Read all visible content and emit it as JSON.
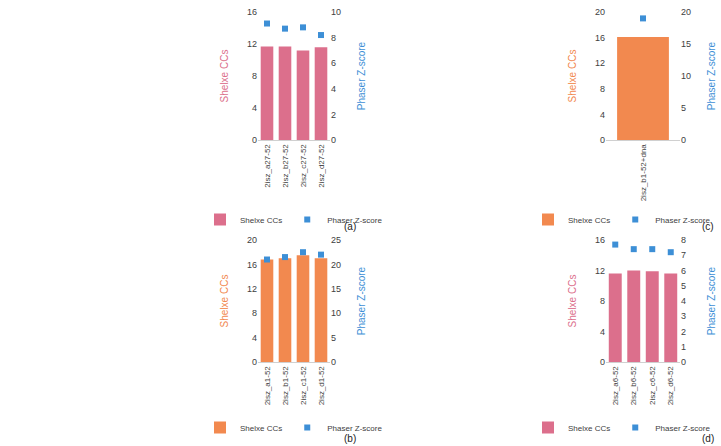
{
  "chart_data": [
    {
      "type": "bar",
      "annotations": [
        "(a)"
      ],
      "categories": [
        "2isz_a27-52",
        "2isz_b27-52",
        "2isz_c27-52",
        "2isz_d27-52"
      ],
      "series": [
        {
          "name": "Shelxe CCs",
          "type": "bar",
          "color": "#dc6f8c",
          "values": [
            11.7,
            11.7,
            11.2,
            11.6
          ]
        },
        {
          "name": "Phaser Z-score",
          "type": "scatter",
          "marker": "square",
          "color": "#3d8fd6",
          "axis": "y2",
          "values": [
            9.1,
            8.7,
            8.8,
            8.2
          ]
        }
      ],
      "ylabel": "Shelxe CCs",
      "y2label": "Phaser Z-score",
      "ylim": [
        0,
        16
      ],
      "yticks": [
        0,
        4,
        8,
        12,
        16
      ],
      "y2lim": [
        0,
        10
      ],
      "y2ticks": [
        0,
        2,
        4,
        6,
        8,
        10
      ],
      "grid": false,
      "legend": "bottom"
    },
    {
      "type": "bar",
      "annotations": [
        "(b)"
      ],
      "categories": [
        "2isz_a1-52",
        "2isz_b1-52",
        "2isz_c1-52",
        "2isz_d1-52"
      ],
      "series": [
        {
          "name": "Shelxe CCs",
          "type": "bar",
          "color": "#f2894f",
          "values": [
            16.8,
            17.0,
            17.5,
            17.0
          ]
        },
        {
          "name": "Phaser Z-score",
          "type": "scatter",
          "marker": "square",
          "color": "#3d8fd6",
          "axis": "y2",
          "values": [
            21.0,
            21.5,
            22.5,
            22.0
          ]
        }
      ],
      "ylabel": "Shelxe CCs",
      "y2label": "Phaser Z-score",
      "ylim": [
        0,
        20
      ],
      "yticks": [
        0,
        4,
        8,
        12,
        16,
        20
      ],
      "y2lim": [
        0,
        25
      ],
      "y2ticks": [
        0,
        5,
        10,
        15,
        20,
        25
      ],
      "grid": false,
      "legend": "bottom"
    },
    {
      "type": "bar",
      "annotations": [
        "(c)"
      ],
      "categories": [
        "2isz_b1-52+dna"
      ],
      "series": [
        {
          "name": "Shelxe CCs",
          "type": "bar",
          "color": "#f2894f",
          "values": [
            16.1
          ]
        },
        {
          "name": "Phaser Z-score",
          "type": "scatter",
          "marker": "square",
          "color": "#3d8fd6",
          "axis": "y2",
          "values": [
            19.0
          ]
        }
      ],
      "ylabel": "Shelxe CCs",
      "y2label": "Phaser Z-score",
      "ylim": [
        0,
        20
      ],
      "yticks": [
        0,
        4,
        8,
        12,
        16,
        20
      ],
      "y2lim": [
        0,
        20
      ],
      "y2ticks": [
        0,
        5,
        10,
        15,
        20
      ],
      "grid": false,
      "legend": "bottom"
    },
    {
      "type": "bar",
      "annotations": [
        "(d)"
      ],
      "categories": [
        "2isz_a6-52",
        "2isz_b6-52",
        "2isz_c6-52",
        "2isz_d6-52"
      ],
      "series": [
        {
          "name": "Shelxe CCs",
          "type": "bar",
          "color": "#dc6f8c",
          "values": [
            11.6,
            12.0,
            11.9,
            11.6
          ]
        },
        {
          "name": "Phaser Z-score",
          "type": "scatter",
          "marker": "square",
          "color": "#3d8fd6",
          "axis": "y2",
          "values": [
            7.7,
            7.4,
            7.4,
            7.2
          ]
        }
      ],
      "ylabel": "Shelxe CCs",
      "y2label": "Phaser Z-score",
      "ylim": [
        0,
        16
      ],
      "yticks": [
        0,
        4,
        8,
        12,
        16
      ],
      "y2lim": [
        0,
        8
      ],
      "y2ticks": [
        0,
        1,
        2,
        3,
        4,
        5,
        6,
        7,
        8
      ],
      "grid": false,
      "legend": "bottom"
    }
  ]
}
